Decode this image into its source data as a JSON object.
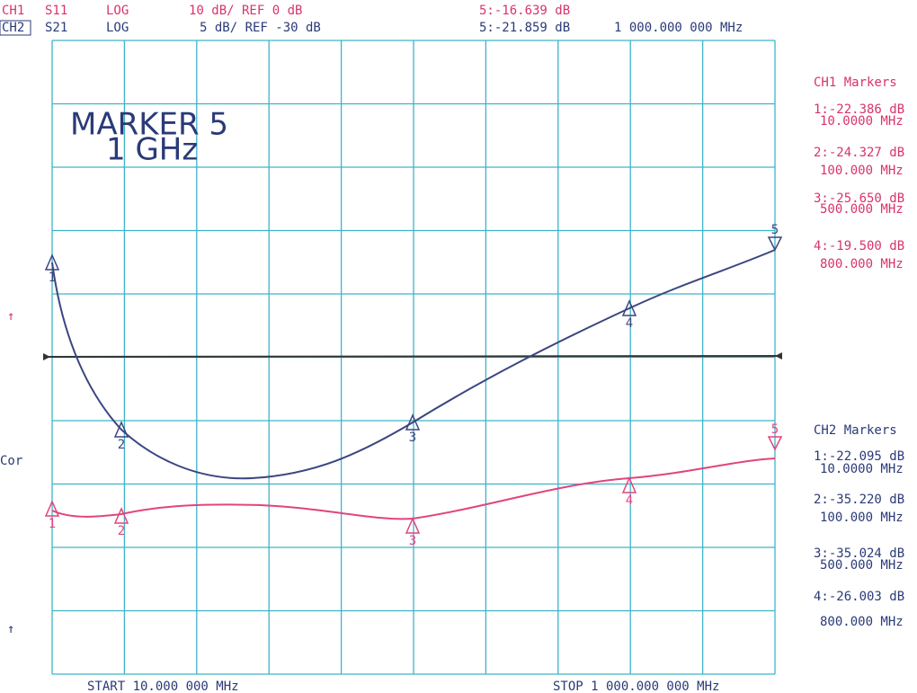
{
  "header": {
    "ch1": {
      "channel": "CH1",
      "param": "S11",
      "format": "LOG",
      "scale": "10 dB/ REF 0 dB",
      "marker": "5:-16.639 dB"
    },
    "ch2": {
      "channel": "CH2",
      "param": "S21",
      "format": "LOG",
      "scale": "5 dB/ REF -30 dB",
      "marker": "5:-21.859 dB",
      "frequency": "1 000.000 000 MHz"
    }
  },
  "annotation": {
    "line1": "MARKER 5",
    "line2": "1 GHz"
  },
  "side_labels": [
    "↑",
    "Cor",
    "↑"
  ],
  "plot": {
    "ch1_marker_labels": [
      "1",
      "2",
      "3",
      "4",
      "5"
    ],
    "ch2_marker_labels": [
      "1",
      "2",
      "3",
      "4",
      "5"
    ]
  },
  "ch1_markers": {
    "title": "CH1 Markers",
    "items": [
      {
        "value": "1:-22.386 dB",
        "freq": "10.0000 MHz"
      },
      {
        "value": "2:-24.327 dB",
        "freq": "100.000 MHz"
      },
      {
        "value": "3:-25.650 dB",
        "freq": "500.000 MHz"
      },
      {
        "value": "4:-19.500 dB",
        "freq": "800.000 MHz"
      }
    ]
  },
  "ch2_markers": {
    "title": "CH2 Markers",
    "items": [
      {
        "value": "1:-22.095 dB",
        "freq": "10.0000 MHz"
      },
      {
        "value": "2:-35.220 dB",
        "freq": "100.000 MHz"
      },
      {
        "value": "3:-35.024 dB",
        "freq": "500.000 MHz"
      },
      {
        "value": "4:-26.003 dB",
        "freq": "800.000 MHz"
      }
    ]
  },
  "footer": {
    "start": "START 10.000 000 MHz",
    "stop": "STOP 1 000.000 000 MHz"
  }
}
